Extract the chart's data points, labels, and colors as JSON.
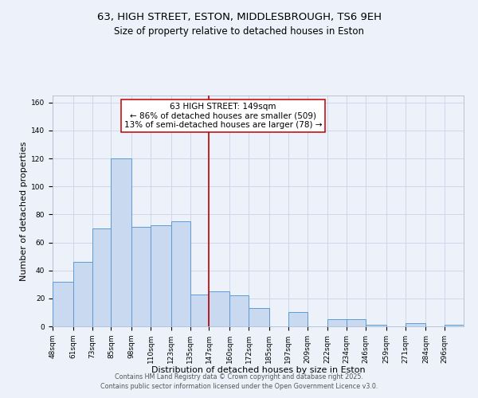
{
  "title": "63, HIGH STREET, ESTON, MIDDLESBROUGH, TS6 9EH",
  "subtitle": "Size of property relative to detached houses in Eston",
  "xlabel": "Distribution of detached houses by size in Eston",
  "ylabel": "Number of detached properties",
  "bin_labels": [
    "48sqm",
    "61sqm",
    "73sqm",
    "85sqm",
    "98sqm",
    "110sqm",
    "123sqm",
    "135sqm",
    "147sqm",
    "160sqm",
    "172sqm",
    "185sqm",
    "197sqm",
    "209sqm",
    "222sqm",
    "234sqm",
    "246sqm",
    "259sqm",
    "271sqm",
    "284sqm",
    "296sqm"
  ],
  "bin_edges": [
    48,
    61,
    73,
    85,
    98,
    110,
    123,
    135,
    147,
    160,
    172,
    185,
    197,
    209,
    222,
    234,
    246,
    259,
    271,
    284,
    296
  ],
  "bar_heights": [
    32,
    46,
    70,
    120,
    71,
    72,
    75,
    23,
    25,
    22,
    13,
    0,
    10,
    0,
    5,
    5,
    1,
    0,
    2,
    0,
    1
  ],
  "bar_color": "#c9d9f0",
  "bar_edge_color": "#5b9bd5",
  "vline_x": 147,
  "vline_color": "#c00000",
  "annotation_title": "63 HIGH STREET: 149sqm",
  "annotation_line1": "← 86% of detached houses are smaller (509)",
  "annotation_line2": "13% of semi-detached houses are larger (78) →",
  "annotation_box_color": "#ffffff",
  "annotation_box_edge": "#c00000",
  "ylim": [
    0,
    165
  ],
  "yticks": [
    0,
    20,
    40,
    60,
    80,
    100,
    120,
    140,
    160
  ],
  "footer1": "Contains HM Land Registry data © Crown copyright and database right 2025.",
  "footer2": "Contains public sector information licensed under the Open Government Licence v3.0.",
  "bg_color": "#edf2fa",
  "plot_bg_color": "#edf2fa",
  "title_fontsize": 9.5,
  "subtitle_fontsize": 8.5,
  "axis_label_fontsize": 8,
  "tick_fontsize": 6.5,
  "annotation_fontsize": 7.5,
  "footer_fontsize": 5.8,
  "grid_color": "#c8d4e8"
}
